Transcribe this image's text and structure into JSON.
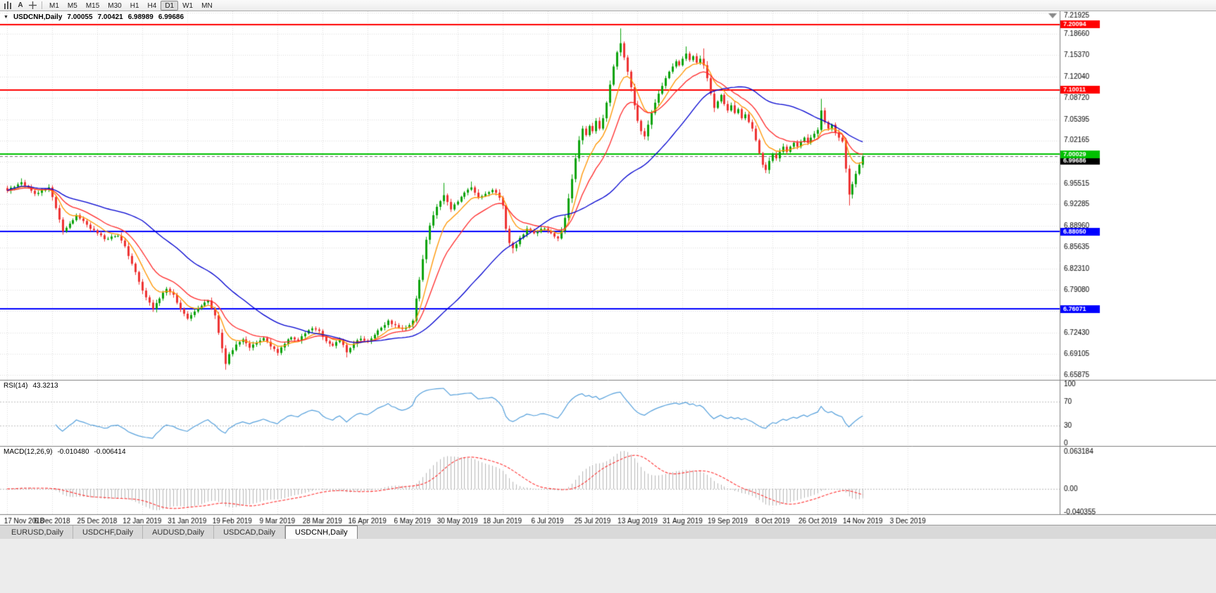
{
  "toolbar": {
    "timeframes": [
      "M1",
      "M5",
      "M15",
      "M30",
      "H1",
      "H4",
      "D1",
      "W1",
      "MN"
    ],
    "active_timeframe": "D1"
  },
  "chart": {
    "title": {
      "marker": "▼",
      "symbol_period": "USDCNH,Daily",
      "open": "7.00055",
      "high": "7.00421",
      "low": "6.98989",
      "close": "6.99686"
    },
    "rsi": {
      "name": "RSI(14)",
      "value": "43.3213"
    },
    "macd": {
      "name": "MACD(12,26,9)",
      "value1": "-0.010480",
      "value2": "-0.006414"
    }
  },
  "tabs": {
    "items": [
      "EURUSD,Daily",
      "USDCHF,Daily",
      "AUDUSD,Daily",
      "USDCAD,Daily",
      "USDCNH,Daily"
    ],
    "active": "USDCNH,Daily"
  },
  "chart_data": {
    "type": "candlestick",
    "symbol": "USDCNH",
    "period": "Daily",
    "last_ohlc": {
      "open": 7.00055,
      "high": 7.00421,
      "low": 6.98989,
      "close": 6.99686
    },
    "y_axis_labels": [
      "7.21925",
      "7.18660",
      "7.15370",
      "7.12040",
      "7.08720",
      "7.05395",
      "7.02165",
      "6.98840",
      "6.95515",
      "6.92285",
      "6.88960",
      "6.85635",
      "6.82310",
      "6.79080",
      "6.75755",
      "6.72430",
      "6.69105",
      "6.65875"
    ],
    "x_axis_labels": [
      "17 Nov 2018",
      "6 Dec 2018",
      "25 Dec 2018",
      "12 Jan 2019",
      "31 Jan 2019",
      "19 Feb 2019",
      "9 Mar 2019",
      "28 Mar 2019",
      "16 Apr 2019",
      "6 May 2019",
      "30 May 2019",
      "18 Jun 2019",
      "6 Jul 2019",
      "25 Jul 2019",
      "13 Aug 2019",
      "31 Aug 2019",
      "19 Sep 2019",
      "8 Oct 2019",
      "26 Oct 2019",
      "14 Nov 2019",
      "3 Dec 2019"
    ],
    "bars_per_x_label": 13,
    "bar_count": 248,
    "price_range": [
      6.6513,
      7.2215
    ],
    "horizontal_lines": [
      {
        "price": 7.20094,
        "label": "7.20094",
        "color": "#ff0000"
      },
      {
        "price": 7.10011,
        "label": "7.10011",
        "color": "#ff0000"
      },
      {
        "price": 7.00029,
        "label": "7.00029",
        "color": "#00c000"
      },
      {
        "price": 6.8805,
        "label": "6.88050",
        "color": "#0000ff"
      },
      {
        "price": 6.76071,
        "label": "6.76071",
        "color": "#0000ff"
      }
    ],
    "current_price": {
      "value": 6.99686,
      "label": "6.99686",
      "color": "#000000"
    },
    "close_anchors": [
      [
        0,
        6.944
      ],
      [
        2,
        6.95
      ],
      [
        4,
        6.957
      ],
      [
        6,
        6.949
      ],
      [
        8,
        6.939
      ],
      [
        10,
        6.945
      ],
      [
        12,
        6.949
      ],
      [
        14,
        6.917
      ],
      [
        16,
        6.881
      ],
      [
        18,
        6.893
      ],
      [
        20,
        6.906
      ],
      [
        22,
        6.897
      ],
      [
        24,
        6.885
      ],
      [
        26,
        6.878
      ],
      [
        28,
        6.869
      ],
      [
        30,
        6.873
      ],
      [
        32,
        6.874
      ],
      [
        34,
        6.858
      ],
      [
        36,
        6.831
      ],
      [
        38,
        6.803
      ],
      [
        40,
        6.779
      ],
      [
        42,
        6.761
      ],
      [
        44,
        6.777
      ],
      [
        46,
        6.792
      ],
      [
        48,
        6.783
      ],
      [
        50,
        6.761
      ],
      [
        52,
        6.746
      ],
      [
        54,
        6.757
      ],
      [
        56,
        6.766
      ],
      [
        58,
        6.774
      ],
      [
        60,
        6.751
      ],
      [
        62,
        6.7
      ],
      [
        63,
        6.676
      ],
      [
        64,
        6.691
      ],
      [
        66,
        6.706
      ],
      [
        68,
        6.714
      ],
      [
        70,
        6.701
      ],
      [
        72,
        6.709
      ],
      [
        74,
        6.716
      ],
      [
        76,
        6.703
      ],
      [
        78,
        6.693
      ],
      [
        80,
        6.707
      ],
      [
        82,
        6.717
      ],
      [
        84,
        6.712
      ],
      [
        86,
        6.723
      ],
      [
        88,
        6.731
      ],
      [
        90,
        6.727
      ],
      [
        92,
        6.711
      ],
      [
        94,
        6.704
      ],
      [
        96,
        6.713
      ],
      [
        98,
        6.694
      ],
      [
        100,
        6.707
      ],
      [
        102,
        6.715
      ],
      [
        104,
        6.711
      ],
      [
        106,
        6.721
      ],
      [
        108,
        6.732
      ],
      [
        110,
        6.743
      ],
      [
        112,
        6.736
      ],
      [
        114,
        6.73
      ],
      [
        116,
        6.736
      ],
      [
        117,
        6.743
      ],
      [
        118,
        6.777
      ],
      [
        119,
        6.806
      ],
      [
        120,
        6.838
      ],
      [
        121,
        6.868
      ],
      [
        122,
        6.89
      ],
      [
        123,
        6.906
      ],
      [
        124,
        6.919
      ],
      [
        126,
        6.937
      ],
      [
        128,
        6.915
      ],
      [
        130,
        6.927
      ],
      [
        132,
        6.941
      ],
      [
        134,
        6.949
      ],
      [
        136,
        6.933
      ],
      [
        138,
        6.939
      ],
      [
        140,
        6.945
      ],
      [
        142,
        6.933
      ],
      [
        143,
        6.921
      ],
      [
        144,
        6.885
      ],
      [
        145,
        6.863
      ],
      [
        146,
        6.855
      ],
      [
        148,
        6.871
      ],
      [
        150,
        6.885
      ],
      [
        152,
        6.878
      ],
      [
        154,
        6.885
      ],
      [
        156,
        6.882
      ],
      [
        158,
        6.873
      ],
      [
        159,
        6.87
      ],
      [
        160,
        6.882
      ],
      [
        161,
        6.902
      ],
      [
        162,
        6.932
      ],
      [
        163,
        6.962
      ],
      [
        164,
        6.994
      ],
      [
        165,
        7.022
      ],
      [
        166,
        7.04
      ],
      [
        167,
        7.03
      ],
      [
        168,
        7.044
      ],
      [
        169,
        7.036
      ],
      [
        170,
        7.052
      ],
      [
        171,
        7.04
      ],
      [
        172,
        7.056
      ],
      [
        173,
        7.08
      ],
      [
        174,
        7.108
      ],
      [
        175,
        7.136
      ],
      [
        176,
        7.158
      ],
      [
        177,
        7.172
      ],
      [
        178,
        7.15
      ],
      [
        179,
        7.128
      ],
      [
        180,
        7.104
      ],
      [
        181,
        7.076
      ],
      [
        182,
        7.052
      ],
      [
        183,
        7.036
      ],
      [
        184,
        7.028
      ],
      [
        185,
        7.046
      ],
      [
        186,
        7.064
      ],
      [
        187,
        7.08
      ],
      [
        188,
        7.094
      ],
      [
        189,
        7.106
      ],
      [
        190,
        7.118
      ],
      [
        191,
        7.128
      ],
      [
        192,
        7.136
      ],
      [
        193,
        7.144
      ],
      [
        194,
        7.138
      ],
      [
        195,
        7.148
      ],
      [
        196,
        7.156
      ],
      [
        197,
        7.146
      ],
      [
        198,
        7.152
      ],
      [
        199,
        7.142
      ],
      [
        200,
        7.148
      ],
      [
        201,
        7.138
      ],
      [
        202,
        7.118
      ],
      [
        203,
        7.094
      ],
      [
        204,
        7.072
      ],
      [
        205,
        7.082
      ],
      [
        206,
        7.092
      ],
      [
        207,
        7.078
      ],
      [
        208,
        7.068
      ],
      [
        209,
        7.076
      ],
      [
        210,
        7.064
      ],
      [
        211,
        7.07
      ],
      [
        212,
        7.056
      ],
      [
        213,
        7.062
      ],
      [
        214,
        7.05
      ],
      [
        215,
        7.04
      ],
      [
        216,
        7.022
      ],
      [
        217,
        7.002
      ],
      [
        218,
        6.984
      ],
      [
        219,
        6.976
      ],
      [
        220,
        6.99
      ],
      [
        221,
        7.0
      ],
      [
        222,
        6.994
      ],
      [
        223,
        7.004
      ],
      [
        224,
        7.012
      ],
      [
        225,
        7.004
      ],
      [
        226,
        7.012
      ],
      [
        227,
        7.018
      ],
      [
        228,
        7.012
      ],
      [
        229,
        7.02
      ],
      [
        230,
        7.026
      ],
      [
        231,
        7.018
      ],
      [
        232,
        7.026
      ],
      [
        233,
        7.032
      ],
      [
        234,
        7.038
      ],
      [
        235,
        7.068
      ],
      [
        236,
        7.05
      ],
      [
        237,
        7.04
      ],
      [
        238,
        7.046
      ],
      [
        239,
        7.034
      ],
      [
        240,
        7.026
      ],
      [
        241,
        7.02
      ],
      [
        242,
        6.978
      ],
      [
        243,
        6.938
      ],
      [
        244,
        6.954
      ],
      [
        245,
        6.97
      ],
      [
        246,
        6.984
      ],
      [
        247,
        6.9969
      ]
    ],
    "extra_wicks": [
      {
        "i": 4,
        "h": 6.963
      },
      {
        "i": 63,
        "l": 6.667
      },
      {
        "i": 98,
        "l": 6.686
      },
      {
        "i": 126,
        "h": 6.956
      },
      {
        "i": 134,
        "h": 6.958
      },
      {
        "i": 146,
        "l": 6.847
      },
      {
        "i": 177,
        "h": 7.195
      },
      {
        "i": 196,
        "h": 7.167
      },
      {
        "i": 201,
        "h": 7.164
      },
      {
        "i": 235,
        "h": 7.086
      },
      {
        "i": 243,
        "l": 6.921
      }
    ],
    "moving_averages": [
      {
        "type": "ema",
        "period": 8,
        "color": "#ff9500"
      },
      {
        "type": "ema",
        "period": 16,
        "color": "#ff2a2a"
      },
      {
        "type": "sma",
        "period": 40,
        "color": "#0000d0"
      }
    ],
    "rsi": {
      "period": 14,
      "current": 43.3213,
      "levels": [
        "100",
        "70",
        "30",
        "0"
      ],
      "color": "#55a0dc"
    },
    "macd": {
      "fast": 12,
      "slow": 26,
      "signal": 9,
      "current": -0.01048,
      "current_signal": -0.006414,
      "axis_labels": [
        "0.063184",
        "0.00",
        "-0.040355"
      ],
      "histogram_color": "#b6b6b6",
      "signal_color": "#ff3333"
    },
    "colors": {
      "background": "#ffffff",
      "grid": "#dcdcdc",
      "up": "#0ca30c",
      "down": "#ee3333",
      "axis_text": "#000000",
      "separator": "#808080"
    }
  }
}
